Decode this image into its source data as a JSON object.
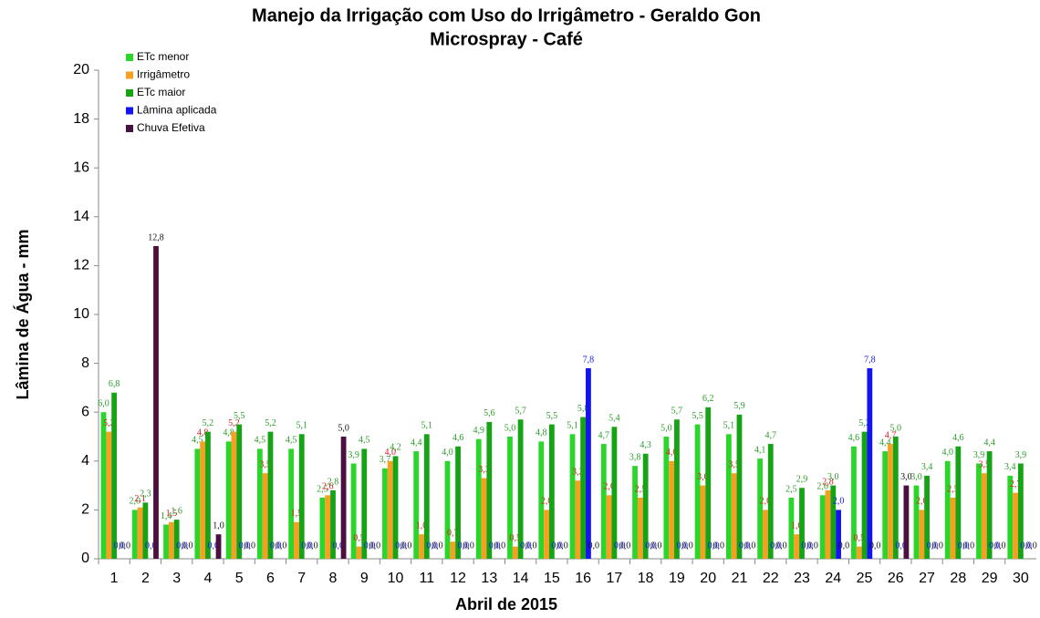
{
  "chart_data": {
    "type": "bar",
    "title": "Manejo da Irrigação com Uso do Irrigâmetro - Geraldo Gon",
    "subtitle": "Microspray - Café",
    "y_label": "Lâmina de Água - mm",
    "x_label": "Abril de 2015",
    "categories": [
      "1",
      "2",
      "3",
      "4",
      "5",
      "6",
      "7",
      "8",
      "9",
      "10",
      "11",
      "12",
      "13",
      "14",
      "15",
      "16",
      "17",
      "18",
      "19",
      "20",
      "21",
      "22",
      "23",
      "24",
      "25",
      "26",
      "27",
      "28",
      "29",
      "30"
    ],
    "ylim": [
      0,
      20
    ],
    "yticks": [
      0,
      2,
      4,
      6,
      8,
      10,
      12,
      14,
      16,
      18,
      20
    ],
    "grid": false,
    "legend": "upper left",
    "series": [
      {
        "name": "ETc menor",
        "color": "#2bd62b",
        "label_color": "#2a9a2a",
        "values": [
          6.0,
          2.0,
          1.4,
          4.5,
          4.8,
          4.5,
          4.5,
          2.5,
          3.9,
          3.7,
          4.4,
          4.0,
          4.9,
          5.0,
          4.8,
          5.1,
          4.7,
          3.8,
          5.0,
          5.5,
          5.1,
          4.1,
          2.5,
          2.6,
          4.6,
          4.4,
          3.0,
          4.0,
          3.9,
          3.4
        ],
        "value_labels": [
          "6,0",
          "2,0",
          "1,4",
          "4,5",
          "4,8",
          "4,5",
          "4,5",
          "2,5",
          "3,9",
          "3,7",
          "4,4",
          "4,0",
          "4,9",
          "5,0",
          "4,8",
          "5,1",
          "4,7",
          "3,8",
          "5,0",
          "5,5",
          "5,1",
          "4,1",
          "2,5",
          "2,6",
          "4,6",
          "4,4",
          "3,0",
          "4,0",
          "3,9",
          "3,4"
        ]
      },
      {
        "name": "Irrigâmetro",
        "color": "#f5a020",
        "label_color": "#d42020",
        "values": [
          5.2,
          2.1,
          1.5,
          4.8,
          5.2,
          3.5,
          1.5,
          2.6,
          0.5,
          4.0,
          1.0,
          0.7,
          3.3,
          0.5,
          2.0,
          3.2,
          2.6,
          2.5,
          4.0,
          3.0,
          3.5,
          2.0,
          1.0,
          2.8,
          0.5,
          4.7,
          2.0,
          2.5,
          3.5,
          2.7
        ],
        "value_labels": [
          "5,2",
          "2,1",
          "1,5",
          "4,8",
          "5,2",
          "3,5",
          "1,5",
          "2,6",
          "0,5",
          "4,0",
          "1,0",
          "0,7",
          "3,3",
          "0,5",
          "2,0",
          "3,2",
          "2,6",
          "2,5",
          "4,0",
          "3,0",
          "3,5",
          "2,0",
          "1,0",
          "2,8",
          "0,5",
          "4,7",
          "2,0",
          "2,5",
          "3,5",
          "2,7"
        ]
      },
      {
        "name": "ETc maior",
        "color": "#16a316",
        "label_color": "#2a9a2a",
        "values": [
          6.8,
          2.3,
          1.6,
          5.2,
          5.5,
          5.2,
          5.1,
          2.8,
          4.5,
          4.2,
          5.1,
          4.6,
          5.6,
          5.7,
          5.5,
          5.8,
          5.4,
          4.3,
          5.7,
          6.2,
          5.9,
          4.7,
          2.9,
          3.0,
          5.2,
          5.0,
          3.4,
          4.6,
          4.4,
          3.9
        ],
        "value_labels": [
          "6,8",
          "2,3",
          "1,6",
          "5,2",
          "5,5",
          "5,2",
          "5,1",
          "2,8",
          "4,5",
          "4,2",
          "5,1",
          "4,6",
          "5,6",
          "5,7",
          "5,5",
          "5,8",
          "5,4",
          "4,3",
          "5,7",
          "6,2",
          "5,9",
          "4,7",
          "2,9",
          "3,0",
          "5,2",
          "5,0",
          "3,4",
          "4,6",
          "4,4",
          "3,9"
        ]
      },
      {
        "name": "Lâmina aplicada",
        "color": "#1414ee",
        "label_color": "#1414ee",
        "values": [
          0,
          0,
          0,
          0,
          0,
          0,
          0,
          0,
          0,
          0,
          0,
          0,
          0,
          0,
          0,
          7.8,
          0,
          0,
          0,
          0,
          0,
          0,
          0,
          2.0,
          7.8,
          0,
          0,
          0,
          0,
          0
        ],
        "value_labels": [
          "0,0",
          "0,0",
          "0,0",
          "0,0",
          "0,0",
          "0,0",
          "0,0",
          "0,0",
          "0,0",
          "0,0",
          "0,0",
          "0,0",
          "0,0",
          "0,0",
          "0,0",
          "7,8",
          "0,0",
          "0,0",
          "0,0",
          "0,0",
          "0,0",
          "0,0",
          "0,0",
          "2,0",
          "7,8",
          "0,0",
          "0,0",
          "0,0",
          "0,0",
          "0,0"
        ]
      },
      {
        "name": "Chuva Efetiva",
        "color": "#4a1040",
        "label_color": "#111111",
        "values": [
          0,
          12.8,
          0,
          1.0,
          0,
          0,
          0,
          5.0,
          0,
          0,
          0,
          0,
          0,
          0,
          0,
          0,
          0,
          0,
          0,
          0,
          0,
          0,
          0,
          0,
          0,
          3.0,
          0,
          0,
          0,
          0
        ],
        "value_labels": [
          "0,0",
          "12,8",
          "0,0",
          "1,0",
          "0,0",
          "0,0",
          "0,0",
          "5,0",
          "0,0",
          "0,0",
          "0,0",
          "0,0",
          "0,0",
          "0,0",
          "0,0",
          "0,0",
          "0,0",
          "0,0",
          "0,0",
          "0,0",
          "0,0",
          "0,0",
          "0,0",
          "0,0",
          "0,0",
          "3,0",
          "0,0",
          "0,0",
          "0,0",
          "0,0"
        ]
      }
    ]
  }
}
